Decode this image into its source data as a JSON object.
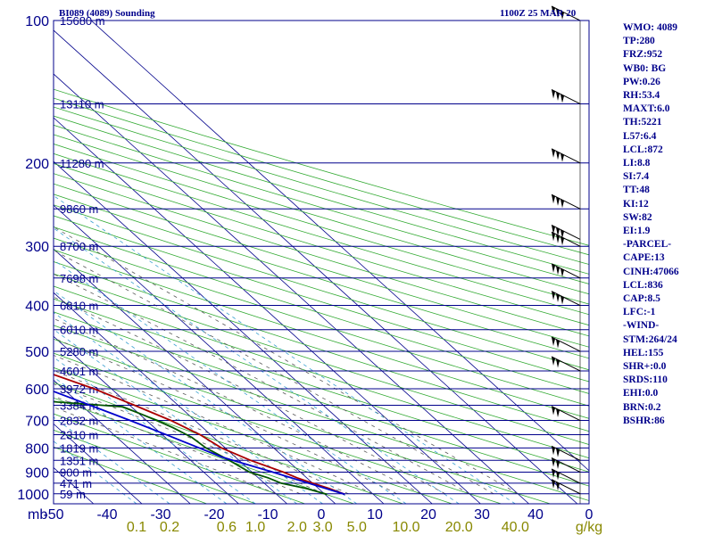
{
  "chart_data": {
    "type": "skew-t sounding",
    "title": "BI089 (4089) Sounding",
    "time": "1100Z 25 MAR 20",
    "pressure_unit": "mb",
    "mixing_ratio_unit": "g/kg",
    "pressure_ticks": [
      100,
      200,
      300,
      400,
      500,
      600,
      700,
      800,
      900,
      1000
    ],
    "temperature_ticks": [
      -50,
      -40,
      -30,
      -20,
      -10,
      0,
      10,
      20,
      30,
      40,
      50
    ],
    "mixing_ratio_ticks": [
      "0.1",
      "0.2",
      "0.6",
      "1.0",
      "2.0",
      "3.0",
      "5.0",
      "10.0",
      "20.0",
      "40.0"
    ],
    "height_levels": [
      {
        "p": 100,
        "label": "15680 m"
      },
      {
        "p": 150,
        "label": "13110 m"
      },
      {
        "p": 200,
        "label": "11280 m"
      },
      {
        "p": 250,
        "label": "9860 m"
      },
      {
        "p": 300,
        "label": "8700 m"
      },
      {
        "p": 350,
        "label": "7698 m"
      },
      {
        "p": 400,
        "label": "6810 m"
      },
      {
        "p": 450,
        "label": "6010 m"
      },
      {
        "p": 500,
        "label": "5280 m"
      },
      {
        "p": 550,
        "label": "4601 m"
      },
      {
        "p": 600,
        "label": "3972 m"
      },
      {
        "p": 650,
        "label": "3384 m"
      },
      {
        "p": 700,
        "label": "2832 m"
      },
      {
        "p": 750,
        "label": "2310 m"
      },
      {
        "p": 800,
        "label": "1819 m"
      },
      {
        "p": 850,
        "label": "1351 m"
      },
      {
        "p": 900,
        "label": "900 m"
      },
      {
        "p": 950,
        "label": "471 m"
      },
      {
        "p": 1000,
        "label": "59 m"
      }
    ],
    "series": [
      {
        "name": "temperature",
        "points": [
          [
            1003,
            4.1
          ],
          [
            975,
            2.2
          ],
          [
            950,
            0
          ],
          [
            925,
            -2
          ],
          [
            900,
            -3.5
          ],
          [
            850,
            -7.6
          ],
          [
            800,
            -10.8
          ],
          [
            750,
            -12.2
          ],
          [
            700,
            -15
          ],
          [
            650,
            -19
          ],
          [
            600,
            -23.6
          ],
          [
            550,
            -30
          ],
          [
            500,
            -36.4
          ],
          [
            450,
            -42.2
          ],
          [
            400,
            -49.8
          ],
          [
            380,
            -53
          ],
          [
            360,
            -57.5
          ],
          [
            340,
            -60.6
          ],
          [
            320,
            -63.2
          ],
          [
            300,
            -66.3
          ],
          [
            285,
            -68.8
          ],
          [
            270,
            -67.8
          ],
          [
            250,
            -63.7
          ],
          [
            200,
            -60.2
          ],
          [
            150,
            -58.2
          ],
          [
            135,
            -57.3
          ],
          [
            120,
            -56.2
          ],
          [
            100,
            -60.2
          ]
        ]
      },
      {
        "name": "dewpoint",
        "points": [
          [
            1003,
            0.4
          ],
          [
            975,
            -2.5
          ],
          [
            950,
            -6.5
          ],
          [
            925,
            -8
          ],
          [
            900,
            -10.5
          ],
          [
            850,
            -12
          ],
          [
            800,
            -14
          ],
          [
            760,
            -14.5
          ],
          [
            725,
            -16.2
          ],
          [
            700,
            -17.9
          ],
          [
            680,
            -19.5
          ],
          [
            655,
            -21.8
          ],
          [
            640,
            -34.2
          ],
          [
            620,
            -45
          ],
          [
            590,
            -48.3
          ],
          [
            570,
            -36.7
          ],
          [
            550,
            -33.7
          ],
          [
            540,
            -39.6
          ],
          [
            520,
            -33
          ],
          [
            500,
            -37
          ],
          [
            480,
            -38.2
          ],
          [
            460,
            -42.4
          ],
          [
            440,
            -45.2
          ],
          [
            420,
            -47.5
          ],
          [
            405,
            -54.4
          ],
          [
            395,
            -49
          ],
          [
            380,
            -51.6
          ],
          [
            370,
            -47.9
          ],
          [
            355,
            -60.5
          ],
          [
            345,
            -70
          ],
          [
            335,
            -68
          ],
          [
            320,
            -63.4
          ],
          [
            300,
            -67.7
          ],
          [
            280,
            -67.2
          ],
          [
            265,
            -74
          ],
          [
            250,
            -79.7
          ],
          [
            230,
            -80.6
          ],
          [
            200,
            -80
          ],
          [
            150,
            -76
          ],
          [
            130,
            -75.5
          ],
          [
            100,
            -78.5
          ]
        ]
      },
      {
        "name": "parcel",
        "points": [
          [
            1003,
            4.1
          ],
          [
            900,
            -5.7
          ],
          [
            836,
            -12.8
          ],
          [
            750,
            -19.2
          ],
          [
            700,
            -23.4
          ],
          [
            600,
            -33.4
          ],
          [
            500,
            -46.2
          ],
          [
            400,
            -62
          ],
          [
            350,
            -71.4
          ],
          [
            300,
            -81.4
          ],
          [
            250,
            -92.8
          ],
          [
            200,
            -106
          ],
          [
            150,
            -121.4
          ],
          [
            100,
            -140.2
          ]
        ]
      }
    ],
    "wind_barb_pressures": [
      100,
      150,
      200,
      250,
      290,
      300,
      350,
      400,
      500,
      550,
      700,
      850,
      900,
      950,
      1000
    ],
    "indices": [
      "WMO: 4089",
      "TP:280",
      "FRZ:952",
      "WB0: BG",
      "PW:0.26",
      "RH:53.4",
      "MAXT:6.0",
      "TH:5221",
      "L57:6.4",
      "LCL:872",
      "LI:8.8",
      "SI:7.4",
      "TT:48",
      "KI:12",
      "SW:82",
      "EI:1.9",
      "-PARCEL-",
      "CAPE:13",
      "CINH:47066",
      "LCL:836",
      "CAP:8.5",
      "LFC:-1",
      "-WIND-",
      "STM:264/24",
      "HEL:155",
      "SHR+:0.0",
      "SRDS:110",
      "EHI:0.0",
      "BRN:0.2",
      "BSHR:86"
    ],
    "colors": {
      "isobar": "#00008b",
      "isotherm": "#00008b",
      "dry_adiabat": "#33aa33",
      "moist_adiabat": "#5a5a5a",
      "mixing_ratio": "#3aa0d0",
      "temperature": "#aa0000",
      "dewpoint": "#005500",
      "parcel": "#0000cc",
      "text": "#00008b",
      "lower_axis": "#888800"
    }
  }
}
